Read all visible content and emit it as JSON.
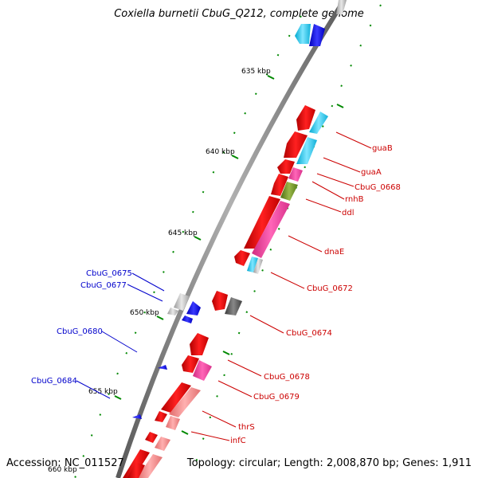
{
  "title": "Coxiella burnetii CbuG_Q212, complete genome",
  "footer": {
    "accession": "Accession: NC_011527",
    "summary": "Topology: circular; Length: 2,008,870 bp; Genes: 1,911"
  },
  "scale_labels": [
    "635 kbp",
    "640 kbp",
    "645 kbp",
    "650 kbp",
    "655 kbp"
  ],
  "colors": {
    "backbone": "#7a7a7a",
    "gene_red": "#ee0000",
    "gene_pink": "#f04a9c",
    "gene_salmon": "#f08a8a",
    "gene_cyan": "#1ec8e8",
    "gene_olive": "#6b8e23",
    "gene_blue": "#0000ee",
    "gene_grey": "#b8b8b8",
    "gene_dark": "#555555",
    "tick_green": "#008800",
    "label_red": "#cc0000",
    "label_blue": "#0000cc"
  },
  "labels_right": [
    "guaB",
    "guaA",
    "CbuG_0668",
    "rnhB",
    "ddl",
    "dnaE",
    "CbuG_0672",
    "CbuG_0674",
    "CbuG_0678",
    "CbuG_0679",
    "thrS",
    "infC"
  ],
  "labels_left": [
    "CbuG_0675",
    "CbuG_0677",
    "CbuG_0680",
    "CbuG_0684"
  ]
}
